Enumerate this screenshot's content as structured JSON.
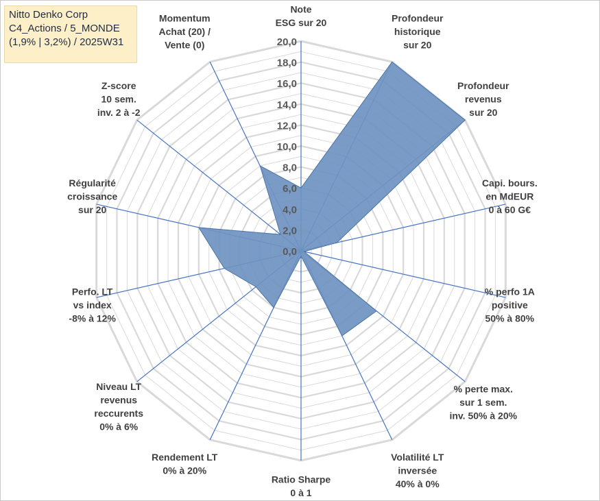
{
  "info": {
    "line1": "Nitto Denko Corp",
    "line2": "C4_Actions / 5_MONDE",
    "line3": "(1,9% | 3,2%) / 2025W31"
  },
  "chart_data": {
    "type": "radar",
    "r_range": [
      0,
      20
    ],
    "r_ticks": [
      "0,0",
      "2,0",
      "4,0",
      "6,0",
      "8,0",
      "10,0",
      "12,0",
      "14,0",
      "16,0",
      "18,0",
      "20,0"
    ],
    "grid": true,
    "colors": {
      "fill": "#6f93c0",
      "stroke": "#4a74a8",
      "grid": "#d9d9d9",
      "axis": "#4472c4"
    },
    "axes": [
      {
        "label": [
          "Note",
          "ESG sur 20"
        ],
        "value": 6.0
      },
      {
        "label": [
          "Profondeur",
          "historique",
          "sur 20"
        ],
        "value": 20.0
      },
      {
        "label": [
          "Profondeur",
          "revenus",
          "sur 20"
        ],
        "value": 20.0
      },
      {
        "label": [
          "Capi. bours.",
          "en MdEUR",
          "0 à 60 G€"
        ],
        "value": 3.5
      },
      {
        "label": [
          "% perfo 1A",
          "positive",
          "50% à 80%"
        ],
        "value": 0.3
      },
      {
        "label": [
          "% perte max.",
          "sur 1 sem.",
          "inv. 50% à 20%"
        ],
        "value": 9.2
      },
      {
        "label": [
          "Volatilité LT",
          "inversée",
          "40% à 0%"
        ],
        "value": 9.0
      },
      {
        "label": [
          "Ratio Sharpe",
          "0 à 1"
        ],
        "value": 0.5
      },
      {
        "label": [
          "Rendement LT",
          "0% à 20%"
        ],
        "value": 6.0
      },
      {
        "label": [
          "Niveau LT",
          "revenus",
          "reccurents",
          "0% à 6%"
        ],
        "value": 5.5
      },
      {
        "label": [
          "Perfo. LT",
          "vs index",
          "-8% à 12%"
        ],
        "value": 7.5
      },
      {
        "label": [
          "Régularité",
          "croissance",
          "sur 20"
        ],
        "value": 10.0
      },
      {
        "label": [
          "Z-score",
          "10 sem.",
          "inv. 2 à -2"
        ],
        "value": 2.5
      },
      {
        "label": [
          "Momentum",
          "Achat (20) /",
          "Vente (0)"
        ],
        "value": 9.0
      }
    ]
  }
}
